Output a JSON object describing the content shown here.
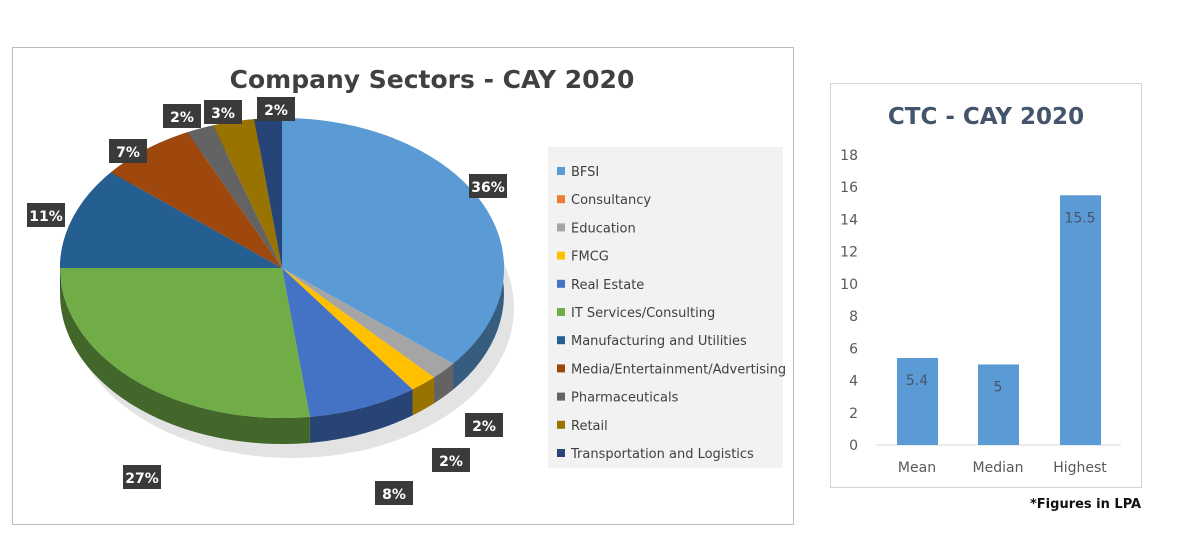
{
  "chart_data": [
    {
      "type": "pie",
      "title": "Company Sectors - CAY 2020",
      "legend": "right",
      "categories": [
        "BFSI",
        "Consultancy",
        "Education",
        "FMCG",
        "Real Estate",
        "IT Services/Consulting",
        "Manufacturing and Utilities",
        "Media/Entertainment/Advertising",
        "Pharmaceuticals",
        "Retail",
        "Transportation and Logistics"
      ],
      "values": [
        36,
        0,
        2,
        2,
        8,
        27,
        11,
        7,
        2,
        3,
        2
      ],
      "labels": [
        "36%",
        "",
        "2%",
        "2%",
        "8%",
        "27%",
        "11%",
        "7%",
        "2%",
        "3%",
        "2%"
      ],
      "colors": [
        "#5b9bd5",
        "#ed7d31",
        "#a5a5a5",
        "#ffc000",
        "#4472c4",
        "#70ad47",
        "#255e91",
        "#9e480e",
        "#636363",
        "#997300",
        "#264478"
      ]
    },
    {
      "type": "bar",
      "title": "CTC - CAY 2020",
      "categories": [
        "Mean",
        "Median",
        "Highest"
      ],
      "values": [
        5.4,
        5,
        15.5
      ],
      "data_labels": [
        "5.4",
        "5",
        "15.5"
      ],
      "ylim": [
        0,
        18
      ],
      "yticks": [
        0,
        2,
        4,
        6,
        8,
        10,
        12,
        14,
        16,
        18
      ],
      "color": "#5b9bd5",
      "grid": false
    }
  ],
  "footnote": "*Figures in LPA"
}
